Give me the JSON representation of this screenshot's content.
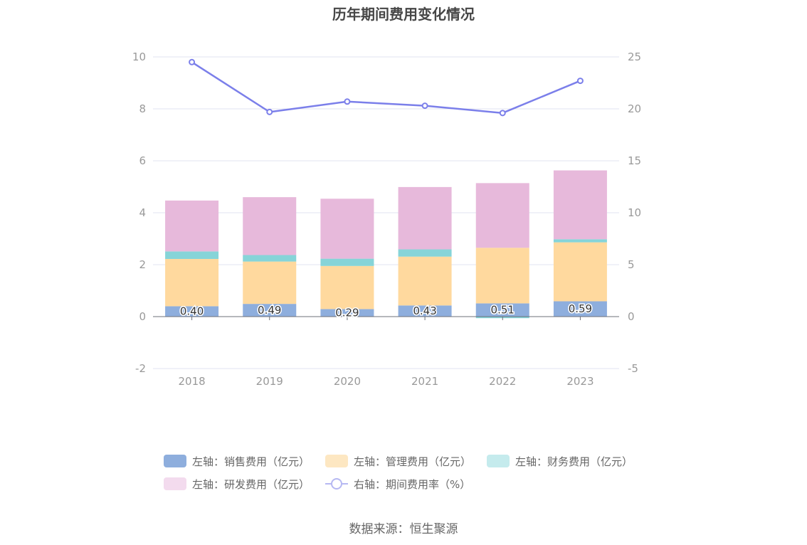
{
  "title": "历年期间费用变化情况",
  "source": "数据来源：恒生聚源",
  "colors": {
    "sales": "#8eaedd",
    "admin": "#ffd99e",
    "finance": "#86d4d8",
    "rnd": "#e7b9db",
    "rate": "#7b7fea",
    "grid": "#e0e3f0",
    "axis": "#6e7079"
  },
  "legend": [
    {
      "label": "左轴：销售费用（亿元）",
      "swatch": "#8eaedd",
      "kind": "bar"
    },
    {
      "label": "左轴：管理费用（亿元）",
      "swatch": "#fde7c2",
      "kind": "bar"
    },
    {
      "label": "左轴：财务费用（亿元）",
      "swatch": "#c5ebed",
      "kind": "bar"
    },
    {
      "label": "左轴：研发费用（亿元）",
      "swatch": "#f3dbee",
      "kind": "bar"
    },
    {
      "label": "右轴：期间费用率（%）",
      "swatch": "#b6b8f2",
      "kind": "line"
    }
  ],
  "chart_data": {
    "type": "bar",
    "categories": [
      "2018",
      "2019",
      "2020",
      "2021",
      "2022",
      "2023"
    ],
    "series": [
      {
        "name": "左轴：销售费用（亿元）",
        "axis": "left",
        "values": [
          0.4,
          0.49,
          0.29,
          0.43,
          0.51,
          0.59
        ],
        "labels": [
          "0.40",
          "0.49",
          "0.29",
          "0.43",
          "0.51",
          "0.59"
        ]
      },
      {
        "name": "左轴：管理费用（亿元）",
        "axis": "left",
        "values": [
          1.82,
          1.63,
          1.66,
          1.88,
          2.14,
          2.27
        ]
      },
      {
        "name": "左轴：财务费用（亿元）",
        "axis": "left",
        "values": [
          0.29,
          0.25,
          0.28,
          0.28,
          -0.06,
          0.12
        ]
      },
      {
        "name": "左轴：研发费用（亿元）",
        "axis": "left",
        "values": [
          1.96,
          2.23,
          2.31,
          2.4,
          2.49,
          2.65
        ]
      },
      {
        "name": "右轴：期间费用率（%）",
        "axis": "right",
        "type": "line",
        "values": [
          24.5,
          19.7,
          20.7,
          20.3,
          19.6,
          22.7
        ]
      }
    ],
    "yleft": {
      "min": -2,
      "max": 10,
      "ticks": [
        "-2",
        "0",
        "2",
        "4",
        "6",
        "8",
        "10"
      ]
    },
    "yright": {
      "min": -5,
      "max": 25,
      "ticks": [
        "-5",
        "0",
        "5",
        "10",
        "15",
        "20",
        "25"
      ]
    },
    "grid": true,
    "legend_position": "bottom"
  }
}
